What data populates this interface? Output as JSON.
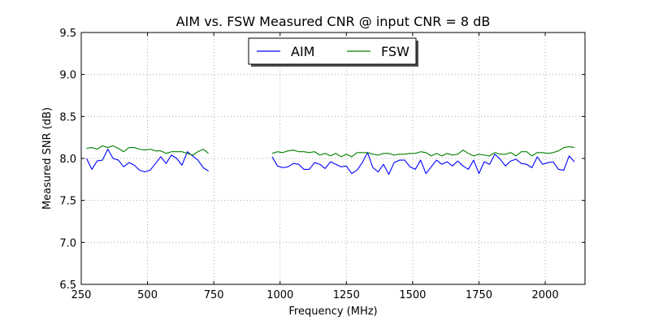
{
  "chart_data": {
    "type": "line",
    "title": "AIM vs. FSW Measured CNR @ input CNR = 8 dB",
    "xlabel": "Frequency (MHz)",
    "ylabel": "Measured SNR (dB)",
    "xlim": [
      250,
      2150
    ],
    "ylim": [
      6.5,
      9.5
    ],
    "xticks": [
      250,
      500,
      750,
      1000,
      1250,
      1500,
      1750,
      2000
    ],
    "yticks": [
      6.5,
      7.0,
      7.5,
      8.0,
      8.5,
      9.0,
      9.5
    ],
    "xtick_labels": [
      "250",
      "500",
      "750",
      "1000",
      "1250",
      "1500",
      "1750",
      "2000"
    ],
    "ytick_labels": [
      "6.5",
      "7.0",
      "7.5",
      "8.0",
      "8.5",
      "9.0",
      "9.5"
    ],
    "grid": true,
    "legend_position": "top-center",
    "series": [
      {
        "name": "AIM",
        "color": "#0000ff",
        "segments": [
          {
            "x": [
              270,
              290,
              310,
              330,
              350,
              370,
              390,
              410,
              430,
              450,
              470,
              490,
              510,
              530,
              550,
              570,
              590,
              610,
              630,
              650,
              670,
              690,
              710,
              730
            ],
            "y": [
              8.0,
              7.87,
              7.97,
              7.98,
              8.11,
              8.0,
              7.98,
              7.9,
              7.95,
              7.92,
              7.86,
              7.84,
              7.86,
              7.94,
              8.02,
              7.94,
              8.04,
              8.0,
              7.92,
              8.08,
              8.03,
              7.98,
              7.89,
              7.85
            ]
          },
          {
            "x": [
              970,
              990,
              1010,
              1030,
              1050,
              1070,
              1090,
              1110,
              1130,
              1150,
              1170,
              1190,
              1210,
              1230,
              1250,
              1270,
              1290,
              1310,
              1330,
              1350,
              1370,
              1390,
              1410,
              1430,
              1450,
              1470,
              1490,
              1510,
              1530,
              1550,
              1570,
              1590,
              1610,
              1630,
              1650,
              1670,
              1690,
              1710,
              1730,
              1750,
              1770,
              1790,
              1810,
              1830,
              1850,
              1870,
              1890,
              1910,
              1930,
              1950,
              1970,
              1990,
              2010,
              2030,
              2050,
              2070,
              2090,
              2110
            ],
            "y": [
              8.02,
              7.91,
              7.89,
              7.9,
              7.94,
              7.93,
              7.87,
              7.87,
              7.95,
              7.93,
              7.88,
              7.96,
              7.93,
              7.9,
              7.91,
              7.82,
              7.86,
              7.95,
              8.07,
              7.89,
              7.84,
              7.93,
              7.81,
              7.95,
              7.98,
              7.98,
              7.9,
              7.87,
              7.98,
              7.82,
              7.9,
              7.98,
              7.93,
              7.96,
              7.91,
              7.97,
              7.91,
              7.87,
              7.98,
              7.82,
              7.96,
              7.93,
              8.05,
              7.99,
              7.91,
              7.97,
              7.99,
              7.94,
              7.93,
              7.89,
              8.02,
              7.93,
              7.95,
              7.96,
              7.87,
              7.86,
              8.03,
              7.96
            ]
          }
        ]
      },
      {
        "name": "FSW",
        "color": "#008000",
        "segments": [
          {
            "x": [
              270,
              290,
              310,
              330,
              350,
              370,
              390,
              410,
              430,
              450,
              470,
              490,
              510,
              530,
              550,
              570,
              590,
              610,
              630,
              650,
              670,
              690,
              710,
              730
            ],
            "y": [
              8.12,
              8.13,
              8.11,
              8.15,
              8.13,
              8.15,
              8.12,
              8.08,
              8.13,
              8.13,
              8.11,
              8.1,
              8.11,
              8.09,
              8.09,
              8.06,
              8.08,
              8.08,
              8.08,
              8.06,
              8.04,
              8.08,
              8.11,
              8.06
            ]
          },
          {
            "x": [
              970,
              990,
              1010,
              1030,
              1050,
              1070,
              1090,
              1110,
              1130,
              1150,
              1170,
              1190,
              1210,
              1230,
              1250,
              1270,
              1290,
              1310,
              1330,
              1350,
              1370,
              1390,
              1410,
              1430,
              1450,
              1470,
              1490,
              1510,
              1530,
              1550,
              1570,
              1590,
              1610,
              1630,
              1650,
              1670,
              1690,
              1710,
              1730,
              1750,
              1770,
              1790,
              1810,
              1830,
              1850,
              1870,
              1890,
              1910,
              1930,
              1950,
              1970,
              1990,
              2010,
              2030,
              2050,
              2070,
              2090,
              2110
            ],
            "y": [
              8.06,
              8.08,
              8.07,
              8.09,
              8.1,
              8.08,
              8.08,
              8.07,
              8.08,
              8.04,
              8.06,
              8.03,
              8.06,
              8.02,
              8.05,
              8.02,
              8.07,
              8.07,
              8.07,
              8.05,
              8.04,
              8.06,
              8.06,
              8.04,
              8.05,
              8.05,
              8.06,
              8.06,
              8.08,
              8.07,
              8.03,
              8.06,
              8.03,
              8.06,
              8.04,
              8.05,
              8.1,
              8.06,
              8.03,
              8.05,
              8.04,
              8.03,
              8.07,
              8.05,
              8.05,
              8.07,
              8.03,
              8.08,
              8.08,
              8.03,
              8.07,
              8.07,
              8.06,
              8.07,
              8.09,
              8.13,
              8.14,
              8.13
            ]
          }
        ]
      }
    ]
  }
}
